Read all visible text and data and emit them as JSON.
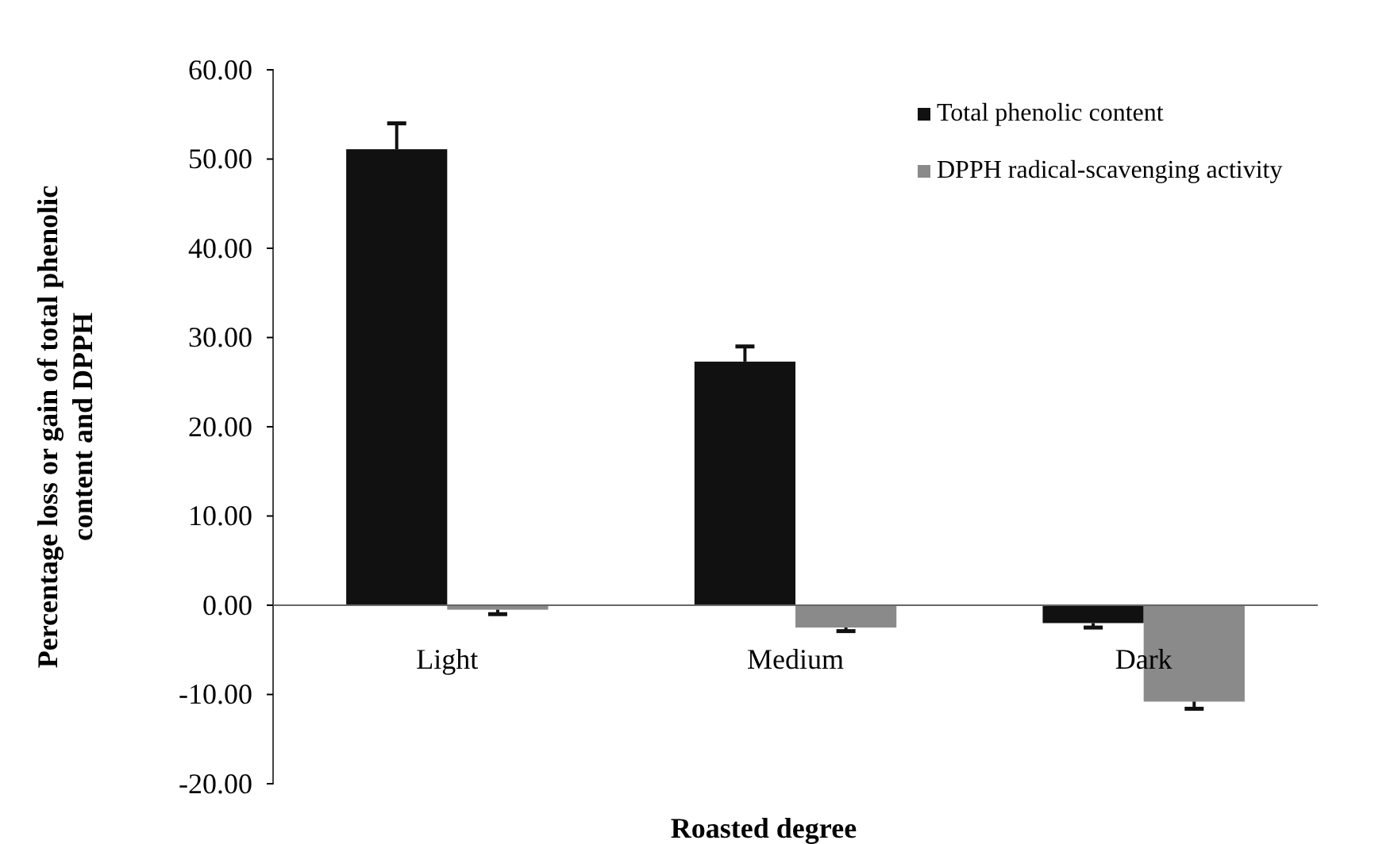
{
  "chart_data": {
    "type": "bar",
    "xlabel": "Roasted degree",
    "ylabel": "Percentage loss or gain of total phenolic content and DPPH",
    "categories": [
      "Light",
      "Medium",
      "Dark"
    ],
    "series": [
      {
        "name": "Total phenolic content",
        "color": "#111111",
        "values": [
          51.1,
          27.3,
          -2.0
        ],
        "errors": [
          [
            51.1,
            54.0
          ],
          [
            27.3,
            29.0
          ],
          [
            -2.5,
            -2.0
          ]
        ]
      },
      {
        "name": "DPPH radical-scavenging activity",
        "color": "#8a8a8a",
        "values": [
          -0.5,
          -2.5,
          -10.8
        ],
        "errors": [
          [
            -1.0,
            -0.5
          ],
          [
            -2.9,
            -2.5
          ],
          [
            -11.6,
            -10.8
          ]
        ]
      }
    ],
    "ylim": [
      -20,
      60
    ],
    "yticks": [
      {
        "value": -20,
        "label": "-20.00"
      },
      {
        "value": -10,
        "label": "-10.00"
      },
      {
        "value": 0,
        "label": "0.00"
      },
      {
        "value": 10,
        "label": "10.00"
      },
      {
        "value": 20,
        "label": "20.00"
      },
      {
        "value": 30,
        "label": "30.00"
      },
      {
        "value": 40,
        "label": "40.00"
      },
      {
        "value": 50,
        "label": "50.00"
      },
      {
        "value": 60,
        "label": "60.00"
      }
    ],
    "legend": "top right"
  }
}
